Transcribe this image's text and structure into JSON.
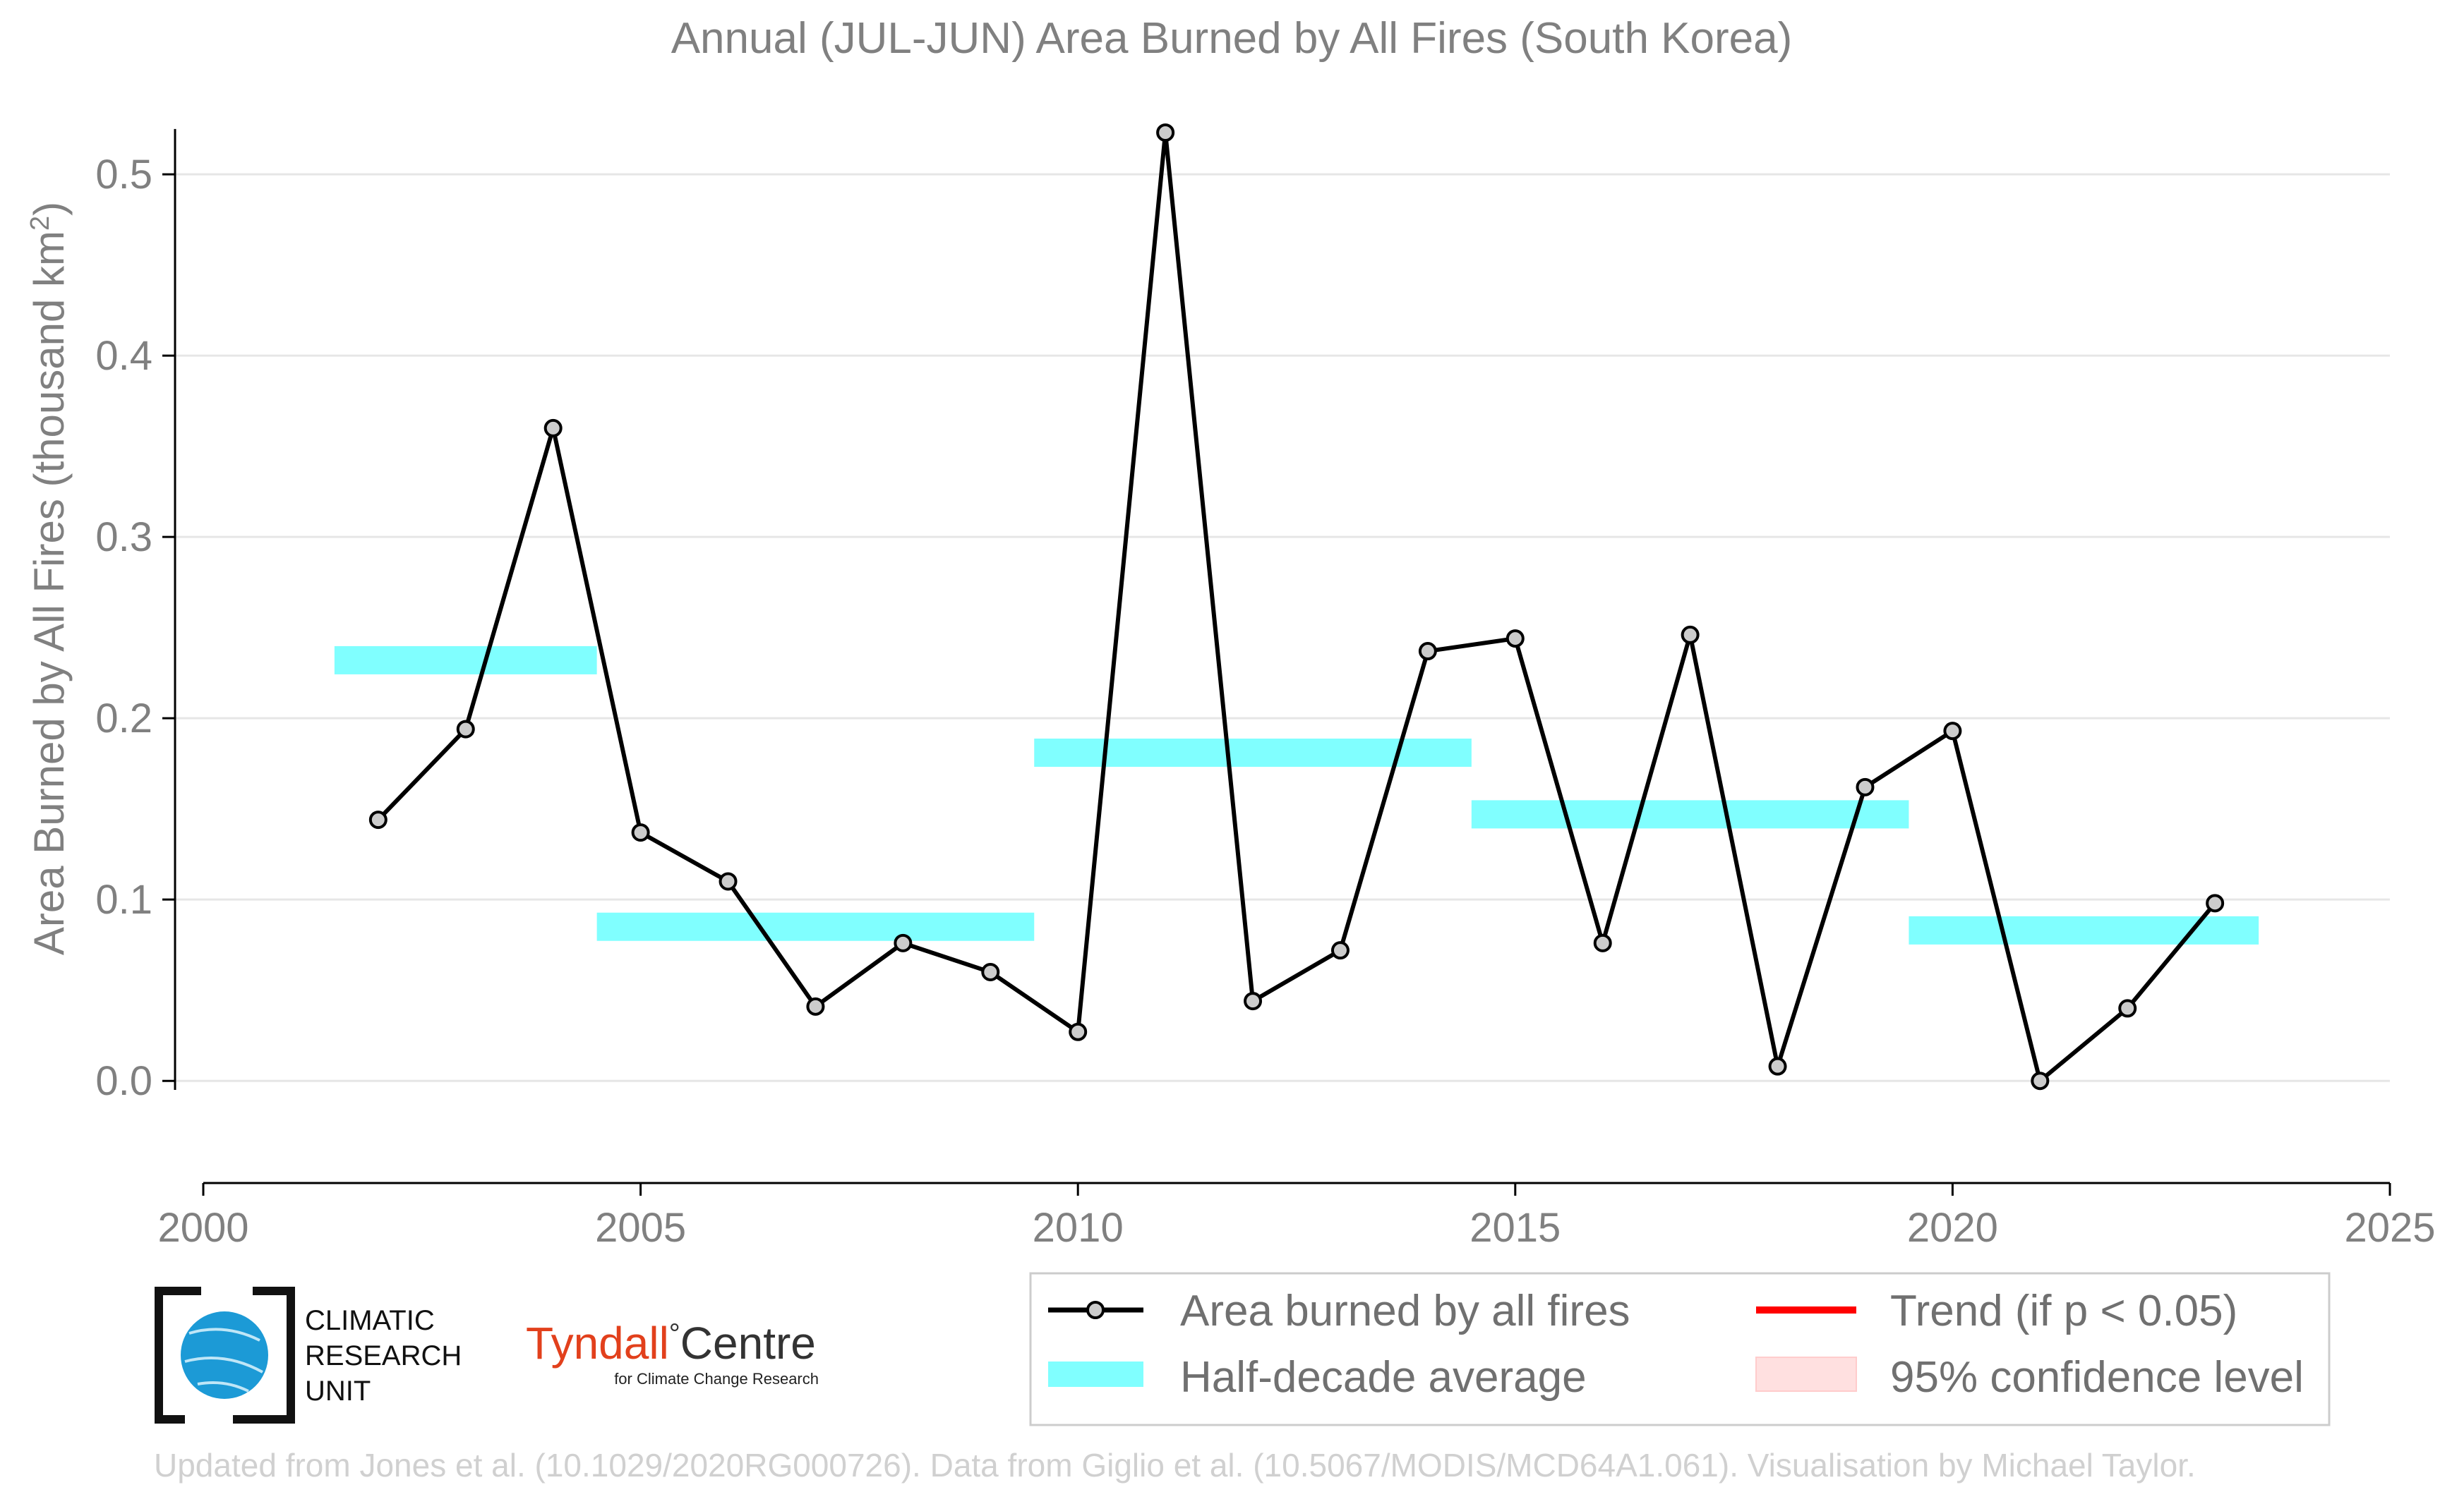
{
  "chart_data": {
    "type": "line",
    "title": "Annual (JUL-JUN) Area Burned by All Fires (South Korea)",
    "ylabel": "Area Burned by All Fires (thousand km",
    "ylabel_sup": "2",
    "ylabel_suffix": ")",
    "xlabel": "",
    "xlim": [
      2000,
      2025
    ],
    "ylim": [
      -0.04,
      0.53
    ],
    "x_ticks": [
      "2000",
      "2005",
      "2010",
      "2015",
      "2020",
      "2025"
    ],
    "y_ticks": [
      "0.0",
      "0.1",
      "0.2",
      "0.3",
      "0.4",
      "0.5"
    ],
    "grid": "horizontal",
    "series": [
      {
        "name": "Area burned by all fires",
        "color": "#000000",
        "marker_fill": "#cccccc",
        "x": [
          2002,
          2003,
          2004,
          2005,
          2006,
          2007,
          2008,
          2009,
          2010,
          2011,
          2012,
          2013,
          2014,
          2015,
          2016,
          2017,
          2018,
          2019,
          2020,
          2021,
          2022,
          2023
        ],
        "y": [
          0.144,
          0.194,
          0.36,
          0.137,
          0.11,
          0.041,
          0.076,
          0.06,
          0.027,
          0.523,
          0.044,
          0.072,
          0.237,
          0.244,
          0.076,
          0.246,
          0.008,
          0.162,
          0.193,
          0.0,
          0.04,
          0.098
        ]
      }
    ],
    "half_decade_average": {
      "name": "Half-decade average",
      "color": "#80ffff",
      "segments": [
        {
          "x0": 2001.5,
          "x1": 2004.5,
          "y": 0.232
        },
        {
          "x0": 2004.5,
          "x1": 2009.5,
          "y": 0.085
        },
        {
          "x0": 2009.5,
          "x1": 2014.5,
          "y": 0.181
        },
        {
          "x0": 2014.5,
          "x1": 2019.5,
          "y": 0.147
        },
        {
          "x0": 2019.5,
          "x1": 2023.5,
          "y": 0.083
        }
      ]
    },
    "legend": {
      "placement": "bottom-right",
      "items": [
        {
          "label": "Area burned by all fires",
          "kind": "line-marker",
          "color": "#000000"
        },
        {
          "label": "Trend (if p < 0.05)",
          "kind": "line",
          "color": "#ff0000"
        },
        {
          "label": "Half-decade average",
          "kind": "band",
          "color": "#80ffff"
        },
        {
          "label": "95% confidence level",
          "kind": "band",
          "color": "#ffe0e0"
        }
      ]
    }
  },
  "logos": {
    "cru": [
      "CLIMATIC",
      "RESEARCH",
      "UNIT"
    ],
    "tyndall_main": "Tyndall",
    "tyndall_centre": "Centre",
    "tyndall_degree": "°",
    "tyndall_sub": "for Climate Change Research"
  },
  "credit": "Updated from Jones et al. (10.1029/2020RG000726). Data from Giglio et al. (10.5067/MODIS/MCD64A1.061). Visualisation by Michael Taylor."
}
